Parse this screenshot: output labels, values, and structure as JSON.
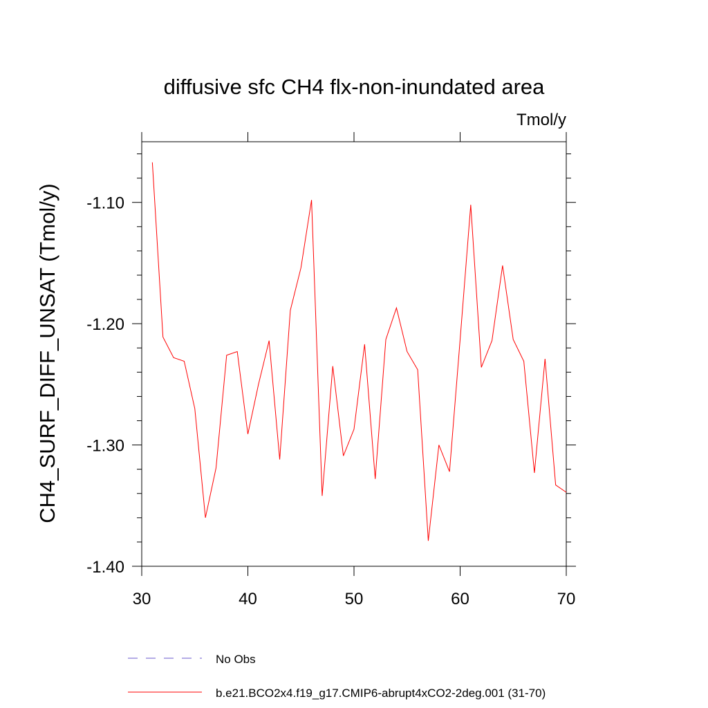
{
  "chart_data": {
    "type": "line",
    "title": "diffusive sfc CH4 flx-non-inundated area",
    "units_label": "Tmol/y",
    "ylabel": "CH4_SURF_DIFF_UNSAT  (Tmol/y)",
    "xlabel": "",
    "xlim": [
      30,
      70
    ],
    "ylim": [
      -1.4,
      -1.05
    ],
    "x_ticks": [
      30,
      40,
      50,
      60,
      70
    ],
    "x_tick_labels": [
      "30",
      "40",
      "50",
      "60",
      "70"
    ],
    "y_ticks": [
      -1.4,
      -1.3,
      -1.2,
      -1.1
    ],
    "y_tick_labels": [
      "-1.40",
      "-1.30",
      "-1.20",
      "-1.10"
    ],
    "grid": false,
    "series": [
      {
        "name": "b.e21.BCO2x4.f19_g17.CMIP6-abrupt4xCO2-2deg.001 (31-70)",
        "color": "#ff0000",
        "dash": "solid",
        "x": [
          31,
          32,
          33,
          34,
          35,
          36,
          37,
          38,
          39,
          40,
          41,
          42,
          43,
          44,
          45,
          46,
          47,
          48,
          49,
          50,
          51,
          52,
          53,
          54,
          55,
          56,
          57,
          58,
          59,
          60,
          61,
          62,
          63,
          64,
          65,
          66,
          67,
          68,
          69,
          70
        ],
        "values": [
          -1.067,
          -1.211,
          -1.228,
          -1.231,
          -1.27,
          -1.36,
          -1.319,
          -1.226,
          -1.223,
          -1.291,
          -1.25,
          -1.214,
          -1.312,
          -1.189,
          -1.154,
          -1.098,
          -1.342,
          -1.235,
          -1.309,
          -1.287,
          -1.217,
          -1.328,
          -1.213,
          -1.187,
          -1.223,
          -1.238,
          -1.379,
          -1.3,
          -1.322,
          -1.213,
          -1.102,
          -1.236,
          -1.214,
          -1.152,
          -1.213,
          -1.231,
          -1.323,
          -1.229,
          -1.333,
          -1.339
        ]
      },
      {
        "name": "No Obs",
        "color": "#6a5acd",
        "dash": "dashed",
        "x": [],
        "values": []
      }
    ],
    "legend": [
      {
        "label": "No Obs",
        "color": "#6a5acd",
        "dash": "dashed"
      },
      {
        "label": "b.e21.BCO2x4.f19_g17.CMIP6-abrupt4xCO2-2deg.001 (31-70)",
        "color": "#ff0000",
        "dash": "solid"
      }
    ],
    "legend_position": "bottom"
  }
}
